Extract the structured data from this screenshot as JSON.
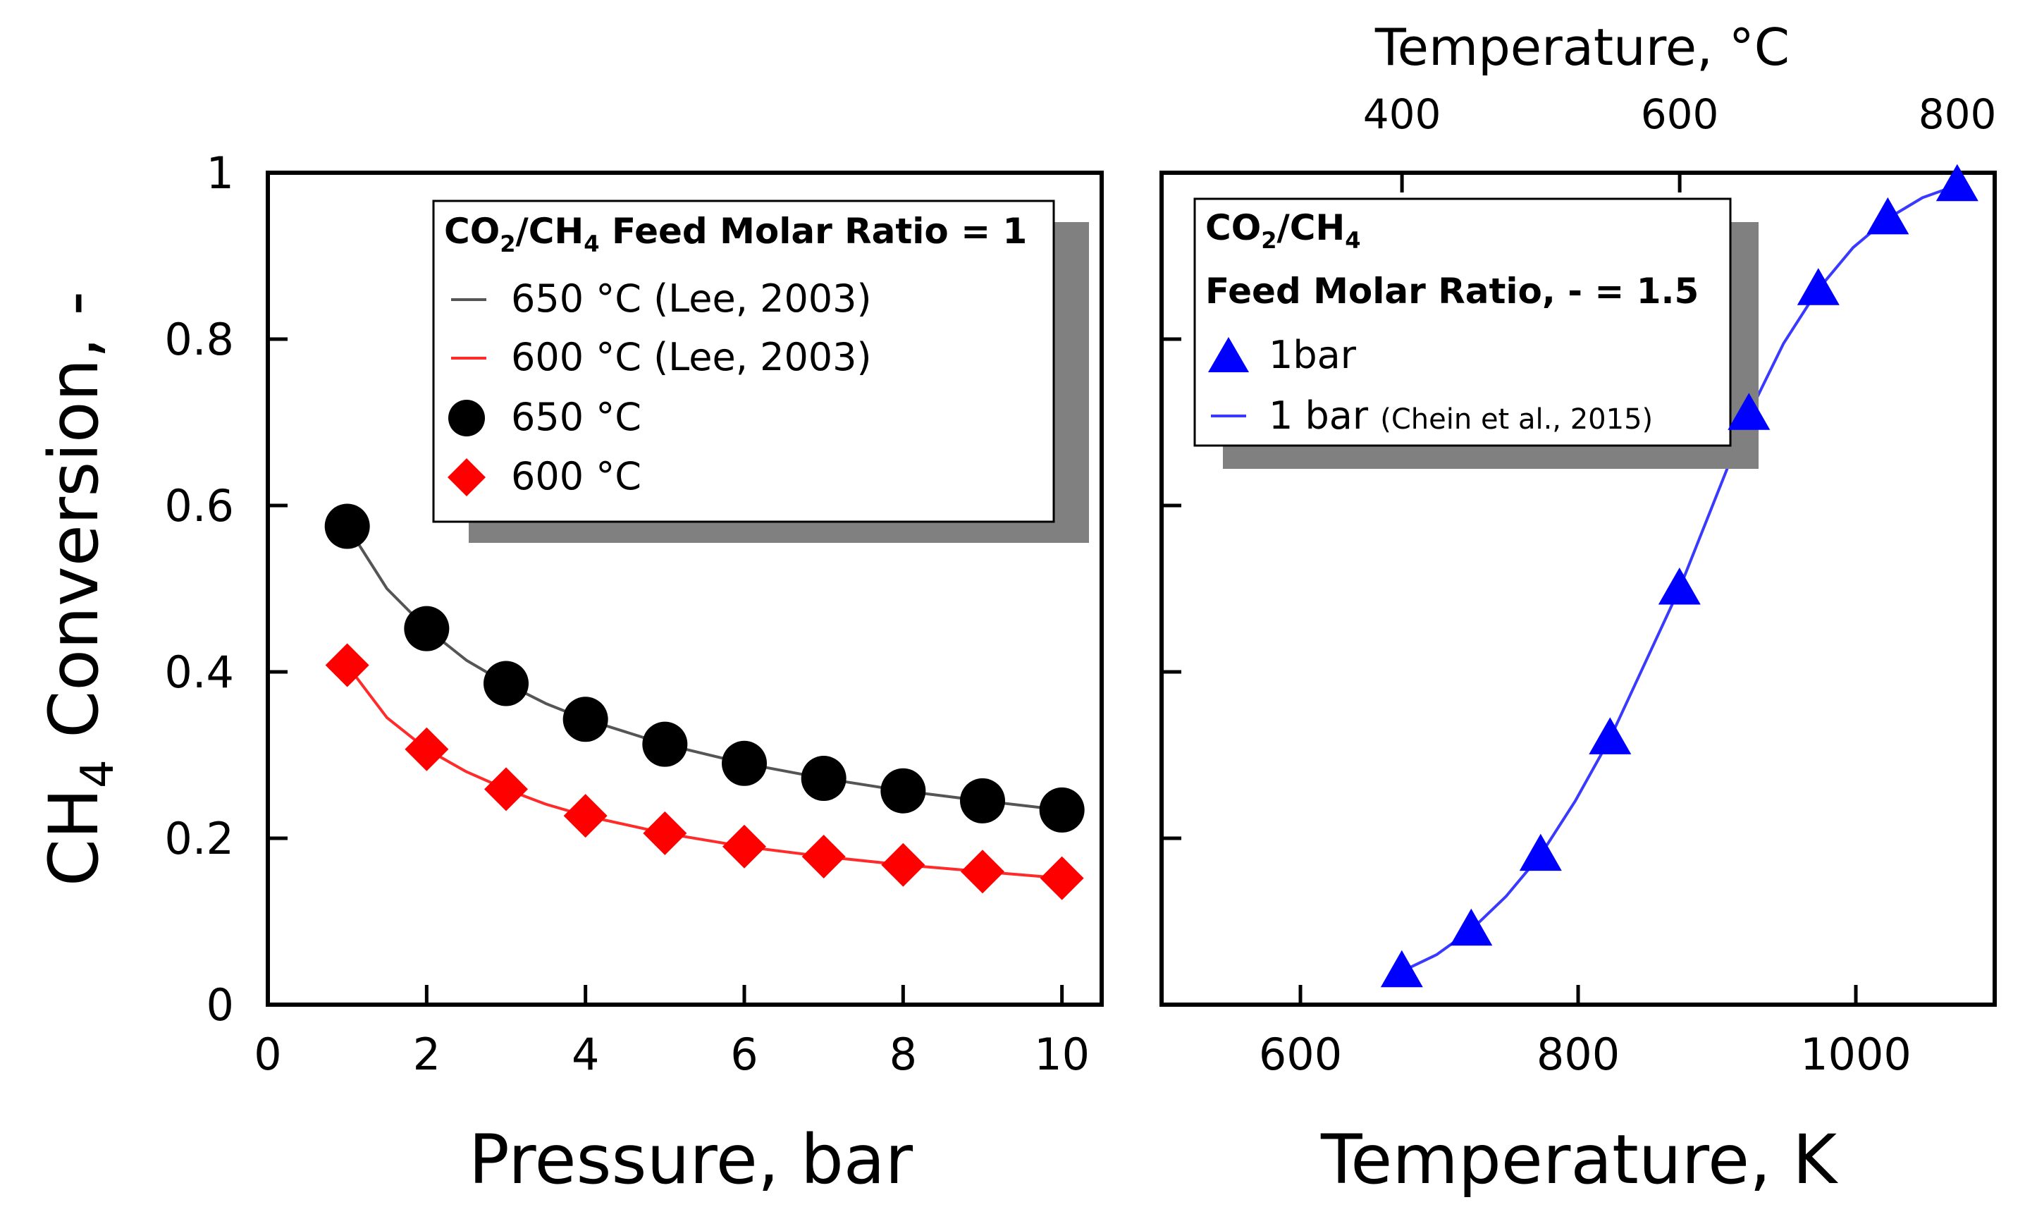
{
  "chart_data": [
    {
      "type": "scatter",
      "panel": "left",
      "xlabel": "Pressure, bar",
      "ylabel_main": "CH",
      "ylabel_sub": "4",
      "ylabel_rest": " Conversion, -",
      "xlim": [
        0,
        10.5
      ],
      "ylim": [
        0,
        1
      ],
      "xticks": [
        0,
        2,
        4,
        6,
        8,
        10
      ],
      "yticks": [
        0,
        0.2,
        0.4,
        0.6,
        0.8,
        1
      ],
      "ytick_labels": [
        "0",
        "0.2",
        "0.4",
        "0.6",
        "0.8",
        "1"
      ],
      "legend": {
        "placement": "top-right",
        "title_parts": [
          "CO",
          "2",
          "/CH",
          "4",
          " Feed Molar Ratio = 1"
        ],
        "entries": [
          {
            "label": "650 °C (Lee, 2003)",
            "kind": "line",
            "color": "#555555"
          },
          {
            "label": "600 °C (Lee, 2003)",
            "kind": "line",
            "color": "#ff2b2b"
          },
          {
            "label": "650 °C",
            "kind": "circle",
            "color": "#000000"
          },
          {
            "label": "600 °C",
            "kind": "diamond",
            "color": "#ff0000"
          }
        ]
      },
      "series": [
        {
          "name": "650 °C",
          "marker": "circle",
          "color": "#000000",
          "x": [
            1,
            2,
            3,
            4,
            5,
            6,
            7,
            8,
            9,
            10
          ],
          "y": [
            0.575,
            0.452,
            0.386,
            0.343,
            0.313,
            0.29,
            0.272,
            0.257,
            0.245,
            0.234
          ]
        },
        {
          "name": "600 °C",
          "marker": "diamond",
          "color": "#ff0000",
          "x": [
            1,
            2,
            3,
            4,
            5,
            6,
            7,
            8,
            9,
            10
          ],
          "y": [
            0.408,
            0.307,
            0.259,
            0.227,
            0.206,
            0.19,
            0.178,
            0.168,
            0.16,
            0.152
          ]
        },
        {
          "name": "650 °C (Lee, 2003)",
          "marker": "line",
          "color": "#555555",
          "x": [
            1,
            1.5,
            2,
            2.5,
            3,
            3.5,
            4,
            5,
            6,
            7,
            8,
            9,
            10
          ],
          "y": [
            0.575,
            0.5,
            0.452,
            0.414,
            0.386,
            0.362,
            0.343,
            0.313,
            0.29,
            0.272,
            0.257,
            0.245,
            0.234
          ]
        },
        {
          "name": "600 °C (Lee, 2003)",
          "marker": "line",
          "color": "#ff2b2b",
          "x": [
            1,
            1.5,
            2,
            2.5,
            3,
            3.5,
            4,
            5,
            6,
            7,
            8,
            9,
            10
          ],
          "y": [
            0.408,
            0.345,
            0.307,
            0.28,
            0.259,
            0.241,
            0.227,
            0.206,
            0.19,
            0.178,
            0.168,
            0.16,
            0.152
          ]
        }
      ]
    },
    {
      "type": "scatter",
      "panel": "right",
      "xlabel": "Temperature, K",
      "top_xlabel": "Temperature, °C",
      "xlim": [
        500,
        1100
      ],
      "ylim": [
        0,
        1
      ],
      "xticks": [
        600,
        800,
        1000
      ],
      "top_xticks_c": [
        400,
        600,
        800
      ],
      "top_xticks_k": [
        673.15,
        873.15,
        1073.15
      ],
      "legend": {
        "placement": "top-left",
        "title_parts": [
          "CO",
          "2",
          "/CH",
          "4"
        ],
        "title_line2": "Feed Molar Ratio, - = 1.5",
        "entries": [
          {
            "label": "1bar",
            "kind": "triangle",
            "color": "#0000ff"
          },
          {
            "label": "1 bar",
            "note": "(Chein et al., 2015)",
            "kind": "line",
            "color": "#3a3aff"
          }
        ]
      },
      "series": [
        {
          "name": "1bar",
          "marker": "triangle",
          "color": "#0000ff",
          "x": [
            673,
            723,
            773,
            823,
            873,
            923,
            973,
            1023,
            1073
          ],
          "y": [
            0.04,
            0.09,
            0.18,
            0.32,
            0.5,
            0.71,
            0.86,
            0.945,
            0.985
          ]
        },
        {
          "name": "1 bar (Chein et al., 2015)",
          "marker": "line",
          "color": "#3a3aff",
          "x": [
            673,
            698,
            723,
            748,
            773,
            798,
            823,
            848,
            873,
            898,
            923,
            948,
            973,
            998,
            1023,
            1048,
            1073
          ],
          "y": [
            0.04,
            0.06,
            0.09,
            0.13,
            0.18,
            0.245,
            0.32,
            0.41,
            0.5,
            0.605,
            0.71,
            0.795,
            0.86,
            0.91,
            0.945,
            0.97,
            0.985
          ]
        }
      ]
    }
  ]
}
